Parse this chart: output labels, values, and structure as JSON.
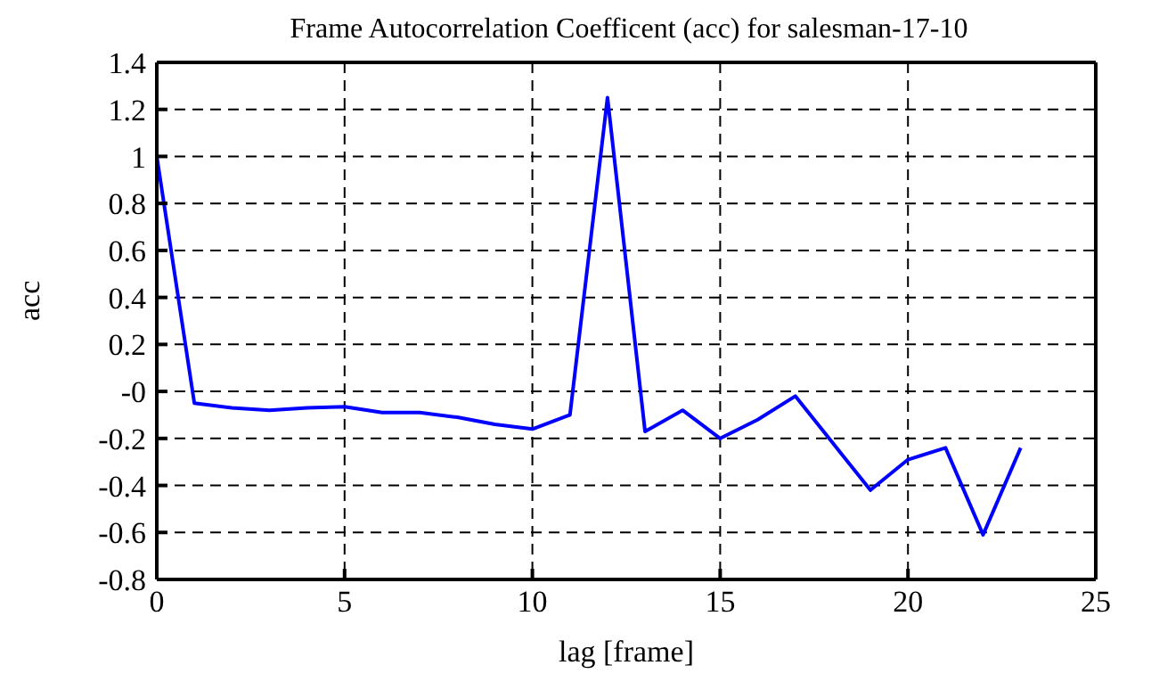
{
  "chart_data": {
    "type": "line",
    "title": "Frame Autocorrelation Coefficent (acc) for salesman-17-10",
    "xlabel": "lag [frame]",
    "ylabel": "acc",
    "x": [
      0,
      1,
      2,
      3,
      4,
      5,
      6,
      7,
      8,
      9,
      10,
      11,
      12,
      13,
      14,
      15,
      16,
      17,
      18,
      19,
      20,
      21,
      22,
      23
    ],
    "series": [
      {
        "color": "#0000ff",
        "values": [
          1,
          -0.05,
          -0.07,
          -0.08,
          -0.07,
          -0.065,
          -0.09,
          -0.09,
          -0.11,
          -0.14,
          -0.16,
          -0.1,
          1.25,
          -0.17,
          -0.08,
          -0.2,
          -0.12,
          -0.02,
          -0.22,
          -0.42,
          -0.29,
          -0.24,
          -0.61,
          -0.24
        ]
      }
    ],
    "xlim": [
      0,
      25
    ],
    "xticks": [
      0,
      5,
      10,
      15,
      20,
      25
    ],
    "ylim": [
      -0.8,
      1.4
    ],
    "yticks": [
      -0.8,
      -0.6,
      -0.4,
      -0.2,
      {
        "value": 0,
        "label": "-0"
      },
      0.2,
      0.4,
      0.6,
      0.8,
      1,
      1.2,
      1.4
    ],
    "grid": true,
    "legend": false,
    "marker": "none",
    "line_style": "solid"
  }
}
